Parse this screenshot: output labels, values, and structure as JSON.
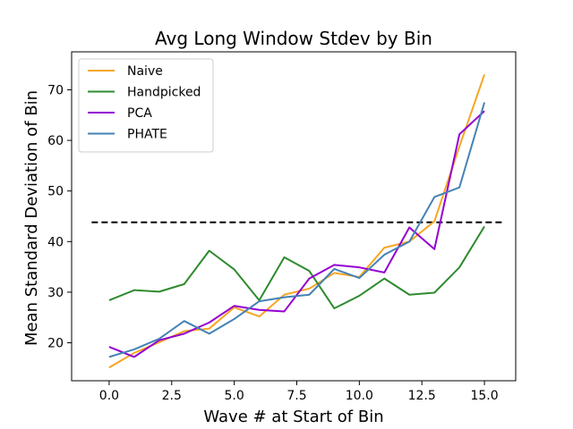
{
  "chart_data": {
    "type": "line",
    "title": "Avg Long Window Stdev by Bin",
    "xlabel": "Wave # at Start of Bin",
    "ylabel": "Mean Standard Deviation of Bin",
    "xlim": [
      -1.5,
      16.25
    ],
    "ylim": [
      12.5,
      77.5
    ],
    "xticks": [
      0.0,
      2.5,
      5.0,
      7.5,
      10.0,
      12.5,
      15.0
    ],
    "xtick_labels": [
      "0.0",
      "2.5",
      "5.0",
      "7.5",
      "10.0",
      "12.5",
      "15.0"
    ],
    "yticks": [
      20,
      30,
      40,
      50,
      60,
      70
    ],
    "ytick_labels": [
      "20",
      "30",
      "40",
      "50",
      "60",
      "70"
    ],
    "grid": false,
    "legend_position": "top-left",
    "x": [
      0,
      1,
      2,
      3,
      4,
      5,
      6,
      7,
      8,
      9,
      10,
      11,
      12,
      13,
      14,
      15
    ],
    "series": [
      {
        "name": "Naive",
        "color": "#f5a623",
        "values": [
          15.1,
          18.0,
          20.1,
          22.3,
          22.8,
          27.0,
          25.2,
          29.5,
          30.7,
          33.8,
          33.0,
          38.8,
          40.0,
          44.0,
          58.8,
          73.0
        ]
      },
      {
        "name": "Handpicked",
        "color": "#2e8b2e",
        "values": [
          28.4,
          30.4,
          30.1,
          31.6,
          38.2,
          34.5,
          28.4,
          36.9,
          34.2,
          26.8,
          29.3,
          32.7,
          29.5,
          29.9,
          34.9,
          43.0
        ]
      },
      {
        "name": "PCA",
        "color": "#9400d3",
        "values": [
          19.2,
          17.2,
          20.5,
          21.8,
          24.0,
          27.3,
          26.5,
          26.2,
          32.7,
          35.4,
          34.9,
          33.9,
          42.8,
          38.5,
          61.2,
          65.8
        ]
      },
      {
        "name": "PHATE",
        "color": "#4682b4",
        "values": [
          17.2,
          18.7,
          20.8,
          24.3,
          21.8,
          24.7,
          28.2,
          29.0,
          29.5,
          34.6,
          32.8,
          37.4,
          40.0,
          48.8,
          50.7,
          67.5
        ]
      }
    ],
    "reference_line": {
      "y": 43.8,
      "x_start": -0.7,
      "x_end": 15.7,
      "style": "dashed",
      "color": "#000000"
    }
  }
}
